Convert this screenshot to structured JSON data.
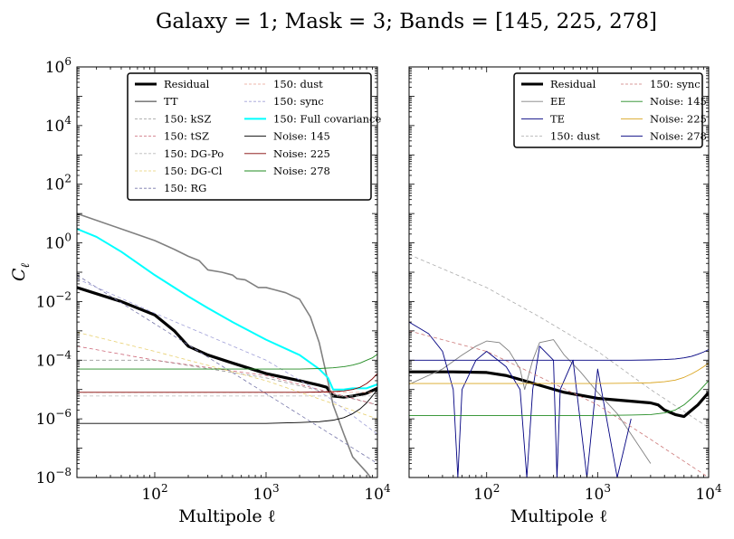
{
  "figure": {
    "title": "Galaxy = 1; Mask = 3; Bands = [145, 225, 278]"
  },
  "chart_data": [
    {
      "type": "line",
      "panel": "left",
      "xlabel": "Multipole ℓ",
      "ylabel": "C",
      "ylabel_sub": "ℓ",
      "xscale": "log",
      "yscale": "log",
      "xlim": [
        20,
        10000
      ],
      "ylim": [
        1e-08,
        1000000.0
      ],
      "x_ticks": [
        {
          "base": "10",
          "exp": "2"
        },
        {
          "base": "10",
          "exp": "3"
        },
        {
          "base": "10",
          "exp": "4"
        }
      ],
      "y_ticks": [
        {
          "base": "10",
          "exp": "−8"
        },
        {
          "base": "10",
          "exp": "−6"
        },
        {
          "base": "10",
          "exp": "−4"
        },
        {
          "base": "10",
          "exp": "−2"
        },
        {
          "base": "10",
          "exp": "0"
        },
        {
          "base": "10",
          "exp": "2"
        },
        {
          "base": "10",
          "exp": "4"
        },
        {
          "base": "10",
          "exp": "6"
        }
      ],
      "legend_position": "upper-right",
      "legend_columns": 2,
      "series": [
        {
          "name": "Residual",
          "color": "#000000",
          "width": 3.2,
          "dash": "",
          "x": [
            20,
            50,
            100,
            150,
            200,
            300,
            500,
            1000,
            2000,
            3000,
            3500,
            4000,
            5000,
            6000,
            8000,
            10000
          ],
          "y": [
            0.03,
            0.01,
            0.0035,
            0.001,
            0.0003,
            0.00015,
            8e-05,
            3.5e-05,
            2e-05,
            1.4e-05,
            1.2e-05,
            6e-06,
            5.5e-06,
            6e-06,
            7.5e-06,
            1.1e-05
          ]
        },
        {
          "name": "TT",
          "color": "#808080",
          "width": 1.6,
          "dash": "",
          "x": [
            20,
            50,
            100,
            150,
            200,
            250,
            300,
            400,
            500,
            550,
            650,
            750,
            850,
            1000,
            1200,
            1500,
            2000,
            2500,
            3000,
            3500,
            4000,
            5000,
            6000,
            8000,
            10000
          ],
          "y": [
            10,
            3,
            1.2,
            0.6,
            0.35,
            0.25,
            0.12,
            0.1,
            0.08,
            0.06,
            0.055,
            0.04,
            0.03,
            0.03,
            0.025,
            0.02,
            0.012,
            0.003,
            0.0004,
            3e-05,
            3e-06,
            3e-07,
            5e-08,
            1.5e-08,
            5e-09
          ]
        },
        {
          "name": "150: kSZ",
          "color": "#999999",
          "width": 0.8,
          "dash": "4,3",
          "x": [
            20,
            100,
            1000,
            3500,
            10000
          ],
          "y": [
            0.0001,
            0.0001,
            2.5e-05,
            8e-06,
            3e-06
          ]
        },
        {
          "name": "150: tSZ",
          "color": "#cc6677",
          "width": 0.8,
          "dash": "4,3",
          "x": [
            20,
            100,
            1000,
            3000,
            10000
          ],
          "y": [
            0.0003,
            0.0001,
            3e-05,
            1e-05,
            3e-06
          ]
        },
        {
          "name": "150: DG-Po",
          "color": "#bbbbbb",
          "width": 0.8,
          "dash": "4,3",
          "x": [
            20,
            10000
          ],
          "y": [
            6e-06,
            6e-06
          ]
        },
        {
          "name": "150: DG-Cl",
          "color": "#e8d070",
          "width": 0.8,
          "dash": "4,3",
          "x": [
            20,
            100,
            1000,
            10000
          ],
          "y": [
            0.0009,
            0.0002,
            2e-05,
            1e-06
          ]
        },
        {
          "name": "150: RG",
          "color": "#7777aa",
          "width": 0.8,
          "dash": "4,3",
          "x": [
            20,
            10000
          ],
          "y": [
            0.08,
            3e-08
          ]
        },
        {
          "name": "150: dust",
          "color": "#e8a090",
          "width": 0.8,
          "dash": "4,3",
          "x": [
            20,
            10000
          ],
          "y": [
            8e-06,
            8e-06
          ]
        },
        {
          "name": "150: sync",
          "color": "#a0a0d8",
          "width": 0.8,
          "dash": "4,3",
          "x": [
            20,
            100,
            1000,
            3500,
            10000
          ],
          "y": [
            0.06,
            0.004,
            0.0001,
            6e-06,
            3e-07
          ]
        },
        {
          "name": "150: Full covariance",
          "color": "#00ffff",
          "width": 2.0,
          "dash": "",
          "x": [
            20,
            30,
            50,
            100,
            200,
            300,
            500,
            1000,
            2000,
            3000,
            3600,
            4000,
            5000,
            6000,
            8000,
            10000
          ],
          "y": [
            3,
            1.6,
            0.5,
            0.08,
            0.015,
            0.006,
            0.002,
            0.0005,
            0.00015,
            5e-05,
            2.5e-05,
            1e-05,
            1e-05,
            1.1e-05,
            1.1e-05,
            1.5e-05
          ]
        },
        {
          "name": "Noise: 145",
          "color": "#000000",
          "width": 0.9,
          "dash": "",
          "x": [
            20,
            500,
            1000,
            2000,
            3000,
            4000,
            5000,
            6000,
            7000,
            8000,
            9000,
            10000
          ],
          "y": [
            7e-07,
            7e-07,
            7e-07,
            7.5e-07,
            8e-07,
            9e-07,
            1.1e-06,
            1.5e-06,
            2.2e-06,
            3.5e-06,
            6e-06,
            1e-05
          ]
        },
        {
          "name": "Noise: 225",
          "color": "#800000",
          "width": 0.9,
          "dash": "",
          "x": [
            20,
            500,
            1000,
            2000,
            3000,
            4000,
            5000,
            6000,
            7000,
            8000,
            9000,
            10000
          ],
          "y": [
            8e-06,
            8e-06,
            8e-06,
            8e-06,
            8.2e-06,
            8.5e-06,
            9e-06,
            1e-05,
            1.2e-05,
            1.6e-05,
            2.3e-05,
            3.5e-05
          ]
        },
        {
          "name": "Noise: 278",
          "color": "#228b22",
          "width": 0.9,
          "dash": "",
          "x": [
            20,
            500,
            1000,
            2000,
            3000,
            4000,
            5000,
            6000,
            7000,
            8000,
            9000,
            10000
          ],
          "y": [
            5e-05,
            5e-05,
            5e-05,
            5e-05,
            5.2e-05,
            5.5e-05,
            6e-05,
            6.8e-05,
            8e-05,
            0.0001,
            0.00012,
            0.00016
          ]
        }
      ]
    },
    {
      "type": "line",
      "panel": "right",
      "xlabel": "Multipole ℓ",
      "ylabel": "",
      "xscale": "log",
      "yscale": "log",
      "xlim": [
        20,
        10000
      ],
      "ylim": [
        1e-08,
        1000000.0
      ],
      "x_ticks": [
        {
          "base": "10",
          "exp": "2"
        },
        {
          "base": "10",
          "exp": "3"
        },
        {
          "base": "10",
          "exp": "4"
        }
      ],
      "legend_position": "upper-right",
      "legend_columns": 2,
      "series": [
        {
          "name": "Residual",
          "color": "#000000",
          "width": 3.2,
          "dash": "",
          "x": [
            20,
            50,
            100,
            150,
            200,
            300,
            500,
            1000,
            2000,
            3000,
            3500,
            4000,
            5000,
            6000,
            8000,
            10000
          ],
          "y": [
            4e-05,
            4e-05,
            3.8e-05,
            3e-05,
            2.2e-05,
            1.4e-05,
            8e-06,
            5e-06,
            4e-06,
            3.5e-06,
            3e-06,
            2e-06,
            1.4e-06,
            1.2e-06,
            3e-06,
            8e-06
          ]
        },
        {
          "name": "EE",
          "color": "#808080",
          "width": 0.9,
          "dash": "",
          "x": [
            20,
            40,
            60,
            80,
            100,
            130,
            160,
            200,
            220,
            260,
            300,
            400,
            500,
            700,
            1000,
            1500,
            2000,
            3000
          ],
          "y": [
            1.5e-05,
            5e-05,
            0.00015,
            0.0003,
            0.00045,
            0.0004,
            0.0002,
            5e-05,
            1e-05,
            0.0001,
            0.0004,
            0.0005,
            0.00015,
            4e-05,
            8e-06,
            1.5e-06,
            3e-07,
            3e-08
          ]
        },
        {
          "name": "TE",
          "color": "#000080",
          "width": 0.9,
          "dash": "",
          "x": [
            20,
            30,
            40,
            50,
            55,
            60,
            80,
            100,
            150,
            200,
            230,
            260,
            300,
            400,
            430,
            460,
            600,
            800,
            1000,
            1500,
            2000
          ],
          "y": [
            0.002,
            0.0008,
            0.0002,
            1e-05,
            1e-08,
            1e-05,
            0.0001,
            0.0002,
            6e-05,
            1e-05,
            1e-08,
            1e-05,
            0.0003,
            0.0001,
            1e-08,
            1e-05,
            0.0001,
            1e-08,
            5e-05,
            1e-08,
            1e-06
          ]
        },
        {
          "name": "150: dust",
          "color": "#aaaaaa",
          "width": 0.8,
          "dash": "4,3",
          "x": [
            20,
            100,
            300,
            1000,
            3000,
            10000
          ],
          "y": [
            0.4,
            0.03,
            0.003,
            0.0002,
            1e-05,
            5e-07
          ]
        },
        {
          "name": "150: sync",
          "color": "#cc7777",
          "width": 0.8,
          "dash": "4,3",
          "x": [
            20,
            100,
            1000,
            3000,
            10000
          ],
          "y": [
            0.001,
            0.0002,
            3e-06,
            2e-07,
            1e-08
          ]
        },
        {
          "name": "Noise: 145",
          "color": "#228b22",
          "width": 0.9,
          "dash": "",
          "x": [
            20,
            500,
            1000,
            2000,
            3000,
            4000,
            5000,
            6000,
            7000,
            8000,
            9000,
            10000
          ],
          "y": [
            1.3e-06,
            1.3e-06,
            1.3e-06,
            1.35e-06,
            1.4e-06,
            1.6e-06,
            2e-06,
            3e-06,
            5e-06,
            8e-06,
            1.3e-05,
            2e-05
          ]
        },
        {
          "name": "Noise: 225",
          "color": "#daa520",
          "width": 0.9,
          "dash": "",
          "x": [
            20,
            500,
            1000,
            2000,
            3000,
            4000,
            5000,
            6000,
            7000,
            8000,
            9000,
            10000
          ],
          "y": [
            1.6e-05,
            1.6e-05,
            1.6e-05,
            1.65e-05,
            1.7e-05,
            1.85e-05,
            2.1e-05,
            2.6e-05,
            3.4e-05,
            4.5e-05,
            6e-05,
            8e-05
          ]
        },
        {
          "name": "Noise: 278",
          "color": "#000080",
          "width": 0.9,
          "dash": "",
          "x": [
            20,
            500,
            1000,
            2000,
            3000,
            4000,
            5000,
            6000,
            7000,
            8000,
            9000,
            10000
          ],
          "y": [
            0.0001,
            0.0001,
            0.0001,
            0.0001,
            0.000102,
            0.000105,
            0.00011,
            0.00012,
            0.000135,
            0.00016,
            0.00019,
            0.00023
          ]
        }
      ]
    }
  ]
}
